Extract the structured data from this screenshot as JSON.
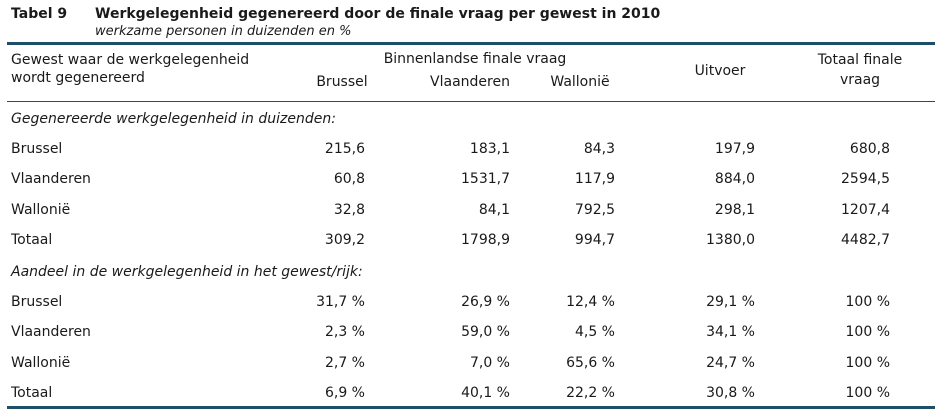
{
  "caption": {
    "label": "Tabel 9",
    "title": "Werkgelegenheid gegenereerd door de finale vraag per gewest in 2010",
    "subtitle": "werkzame personen in duizenden en %"
  },
  "header": {
    "region_col_line1": "Gewest waar de werkgelegenheid",
    "region_col_line2": "wordt gegenereerd",
    "domestic_group": "Binnenlandse finale vraag",
    "col_brussel": "Brussel",
    "col_vlaanderen": "Vlaanderen",
    "col_wallonie": "Wallonië",
    "col_uitvoer": "Uitvoer",
    "col_total_line1": "Totaal finale",
    "col_total_line2": "vraag"
  },
  "sections": [
    {
      "title": "Gegenereerde werkgelegenheid in duizenden:",
      "rows": [
        {
          "label": "Brussel",
          "values": [
            "215,6",
            "183,1",
            "84,3",
            "197,9",
            "680,8"
          ]
        },
        {
          "label": "Vlaanderen",
          "values": [
            "60,8",
            "1531,7",
            "117,9",
            "884,0",
            "2594,5"
          ]
        },
        {
          "label": "Wallonië",
          "values": [
            "32,8",
            "84,1",
            "792,5",
            "298,1",
            "1207,4"
          ]
        },
        {
          "label": "Totaal",
          "values": [
            "309,2",
            "1798,9",
            "994,7",
            "1380,0",
            "4482,7"
          ]
        }
      ]
    },
    {
      "title": "Aandeel in de werkgelegenheid in het gewest/rijk:",
      "rows": [
        {
          "label": "Brussel",
          "values": [
            "31,7 %",
            "26,9 %",
            "12,4 %",
            "29,1 %",
            "100 %"
          ]
        },
        {
          "label": "Vlaanderen",
          "values": [
            "2,3 %",
            "59,0 %",
            "4,5 %",
            "34,1 %",
            "100 %"
          ]
        },
        {
          "label": "Wallonië",
          "values": [
            "2,7 %",
            "7,0 %",
            "65,6 %",
            "24,7 %",
            "100 %"
          ]
        },
        {
          "label": "Totaal",
          "values": [
            "6,9 %",
            "40,1 %",
            "22,2 %",
            "30,8 %",
            "100 %"
          ]
        }
      ]
    }
  ]
}
